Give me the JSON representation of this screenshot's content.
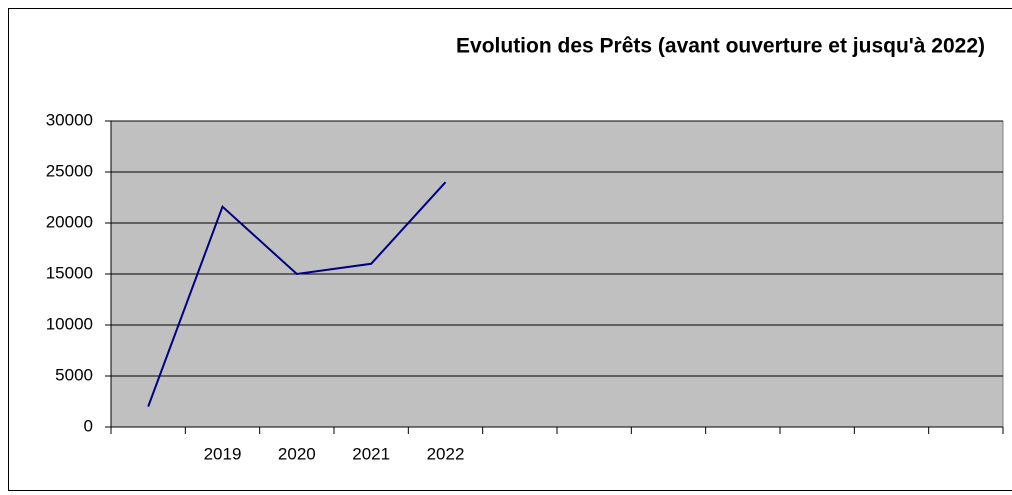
{
  "chart_data": {
    "type": "line",
    "title": "Evolution des Prêts (avant ouverture et jusqu'à 2022)",
    "categories": [
      null,
      "2019",
      "2020",
      "2021",
      "2022",
      null,
      null,
      null,
      null,
      null,
      null,
      null
    ],
    "series": [
      {
        "name": null,
        "color": "#000080",
        "values": [
          2000,
          21600,
          15000,
          16000,
          24000,
          null,
          null,
          null,
          null,
          null,
          null,
          null
        ]
      }
    ],
    "ylim": [
      0,
      30000
    ],
    "yticks": [
      0,
      5000,
      10000,
      15000,
      20000,
      25000,
      30000
    ],
    "grid": true,
    "plot_background": "#c0c0c0"
  }
}
